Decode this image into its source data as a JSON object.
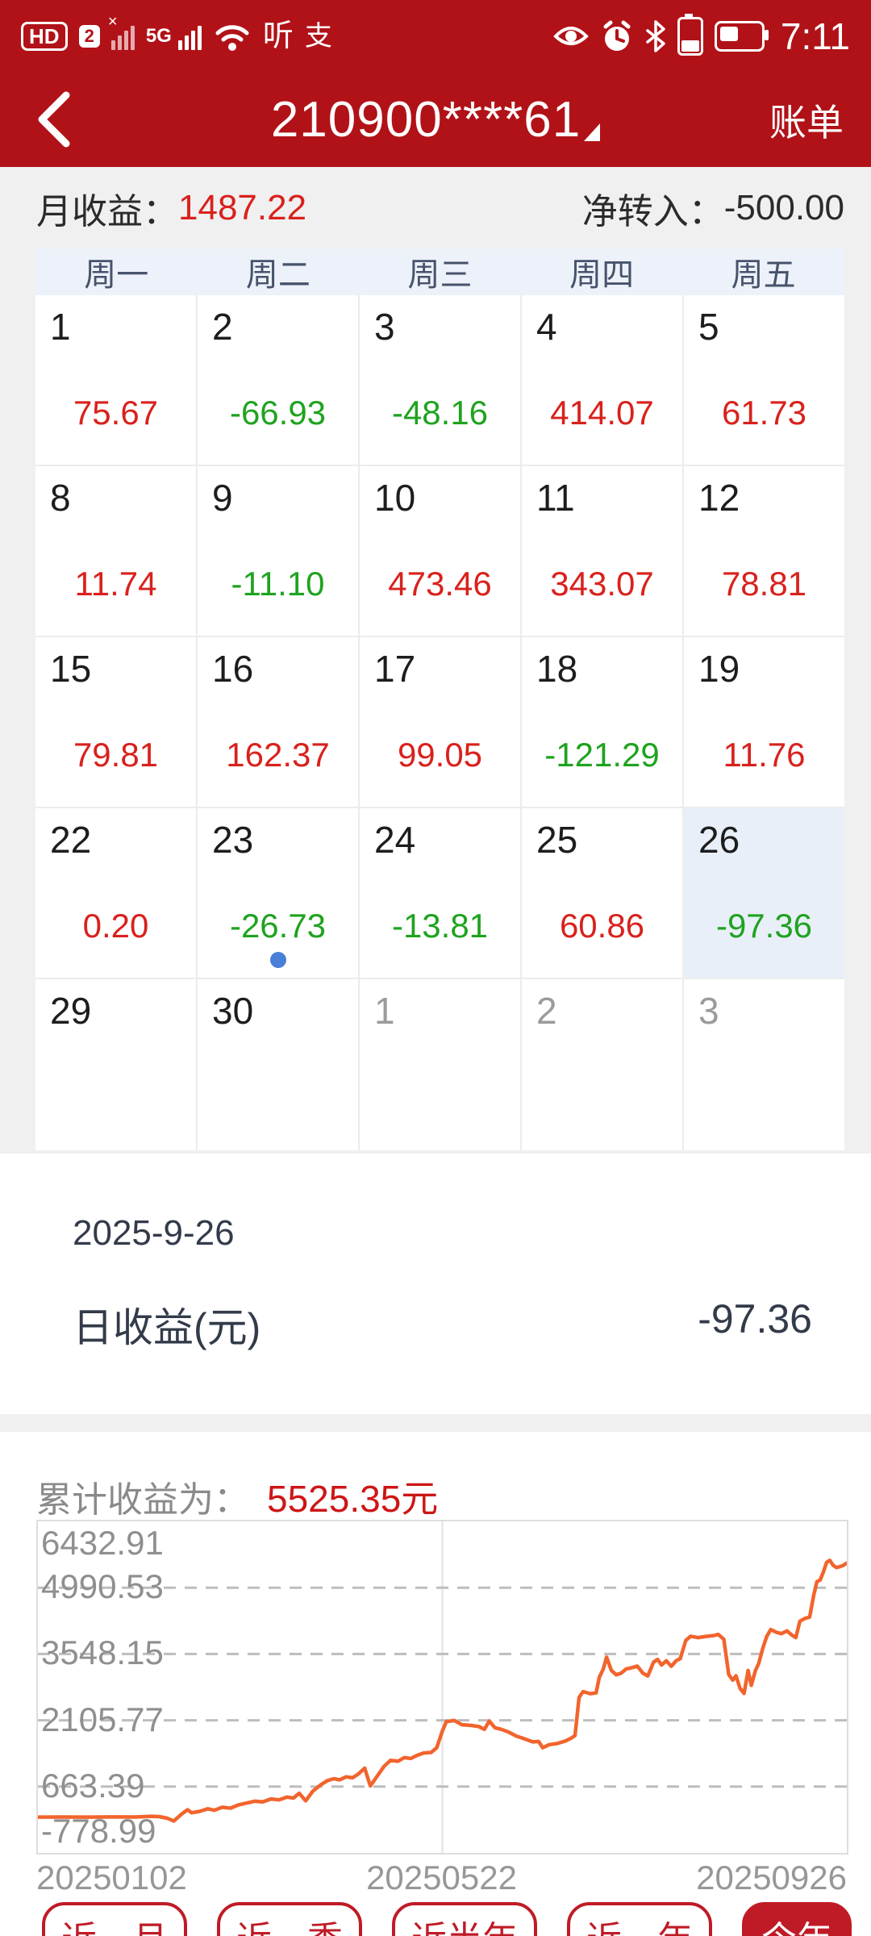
{
  "status_bar": {
    "time": "7:11",
    "hd_label": "HD",
    "sim_badge": "2",
    "network_label": "5G",
    "notif_glyph_1": "听",
    "notif_glyph_2": "支"
  },
  "header": {
    "title": "210900****61",
    "action": "账单"
  },
  "summary": {
    "month_label": "月收益：",
    "month_value": "1487.22",
    "net_label": "净转入：",
    "net_value": "-500.00"
  },
  "calendar": {
    "weekdays": [
      "周一",
      "周二",
      "周三",
      "周四",
      "周五"
    ],
    "weeks": [
      [
        {
          "day": "1",
          "value": "75.67",
          "dir": "up"
        },
        {
          "day": "2",
          "value": "-66.93",
          "dir": "down"
        },
        {
          "day": "3",
          "value": "-48.16",
          "dir": "down"
        },
        {
          "day": "4",
          "value": "414.07",
          "dir": "up"
        },
        {
          "day": "5",
          "value": "61.73",
          "dir": "up"
        }
      ],
      [
        {
          "day": "8",
          "value": "11.74",
          "dir": "up"
        },
        {
          "day": "9",
          "value": "-11.10",
          "dir": "down"
        },
        {
          "day": "10",
          "value": "473.46",
          "dir": "up"
        },
        {
          "day": "11",
          "value": "343.07",
          "dir": "up"
        },
        {
          "day": "12",
          "value": "78.81",
          "dir": "up"
        }
      ],
      [
        {
          "day": "15",
          "value": "79.81",
          "dir": "up"
        },
        {
          "day": "16",
          "value": "162.37",
          "dir": "up"
        },
        {
          "day": "17",
          "value": "99.05",
          "dir": "up"
        },
        {
          "day": "18",
          "value": "-121.29",
          "dir": "down"
        },
        {
          "day": "19",
          "value": "11.76",
          "dir": "up"
        }
      ],
      [
        {
          "day": "22",
          "value": "0.20",
          "dir": "up"
        },
        {
          "day": "23",
          "value": "-26.73",
          "dir": "down",
          "dot": true
        },
        {
          "day": "24",
          "value": "-13.81",
          "dir": "down"
        },
        {
          "day": "25",
          "value": "60.86",
          "dir": "up"
        },
        {
          "day": "26",
          "value": "-97.36",
          "dir": "down",
          "selected": true
        }
      ],
      [
        {
          "day": "29"
        },
        {
          "day": "30"
        },
        {
          "day": "1",
          "muted": true
        },
        {
          "day": "2",
          "muted": true
        },
        {
          "day": "3",
          "muted": true
        }
      ]
    ]
  },
  "detail": {
    "date": "2025-9-26",
    "row_label": "日收益(元)",
    "row_value": "-97.36"
  },
  "cumulative": {
    "label": "累计收益为：",
    "value": "5525.35元"
  },
  "chart_data": {
    "type": "line",
    "title": "累计收益为 5525.35元",
    "ylim": [
      -778.99,
      6432.91
    ],
    "yticks": [
      6432.91,
      4990.53,
      3548.15,
      2105.77,
      663.39,
      -778.99
    ],
    "gridlines": [
      4990.53,
      3548.15,
      2105.77,
      663.39
    ],
    "grid_style": "dashed",
    "vline_x_fraction": 0.5,
    "xticks": [
      "20250102",
      "20250522",
      "20250926"
    ],
    "line_color": "#f2642d",
    "series": [
      {
        "name": "累计收益",
        "points": [
          [
            0,
            0
          ],
          [
            0.03,
            2
          ],
          [
            0.06,
            0
          ],
          [
            0.09,
            3
          ],
          [
            0.12,
            1
          ],
          [
            0.14,
            18
          ],
          [
            0.15,
            10
          ],
          [
            0.16,
            -25
          ],
          [
            0.168,
            -85
          ],
          [
            0.178,
            70
          ],
          [
            0.185,
            160
          ],
          [
            0.19,
            95
          ],
          [
            0.2,
            125
          ],
          [
            0.21,
            180
          ],
          [
            0.218,
            150
          ],
          [
            0.228,
            215
          ],
          [
            0.238,
            195
          ],
          [
            0.248,
            265
          ],
          [
            0.258,
            305
          ],
          [
            0.268,
            345
          ],
          [
            0.278,
            330
          ],
          [
            0.288,
            395
          ],
          [
            0.298,
            375
          ],
          [
            0.308,
            435
          ],
          [
            0.316,
            415
          ],
          [
            0.323,
            520
          ],
          [
            0.331,
            355
          ],
          [
            0.34,
            565
          ],
          [
            0.35,
            705
          ],
          [
            0.358,
            795
          ],
          [
            0.366,
            835
          ],
          [
            0.373,
            810
          ],
          [
            0.381,
            875
          ],
          [
            0.389,
            855
          ],
          [
            0.396,
            935
          ],
          [
            0.404,
            1065
          ],
          [
            0.411,
            680
          ],
          [
            0.42,
            905
          ],
          [
            0.428,
            1105
          ],
          [
            0.436,
            1235
          ],
          [
            0.445,
            1215
          ],
          [
            0.453,
            1295
          ],
          [
            0.461,
            1275
          ],
          [
            0.469,
            1345
          ],
          [
            0.477,
            1395
          ],
          [
            0.486,
            1405
          ],
          [
            0.493,
            1510
          ],
          [
            0.5,
            1870
          ],
          [
            0.505,
            2080
          ],
          [
            0.515,
            2100
          ],
          [
            0.524,
            2010
          ],
          [
            0.535,
            1995
          ],
          [
            0.545,
            1970
          ],
          [
            0.552,
            1910
          ],
          [
            0.558,
            2090
          ],
          [
            0.565,
            1945
          ],
          [
            0.573,
            1910
          ],
          [
            0.582,
            1850
          ],
          [
            0.591,
            1765
          ],
          [
            0.601,
            1705
          ],
          [
            0.612,
            1635
          ],
          [
            0.619,
            1645
          ],
          [
            0.624,
            1510
          ],
          [
            0.632,
            1575
          ],
          [
            0.642,
            1600
          ],
          [
            0.652,
            1655
          ],
          [
            0.659,
            1715
          ],
          [
            0.664,
            1775
          ],
          [
            0.669,
            2600
          ],
          [
            0.674,
            2730
          ],
          [
            0.683,
            2685
          ],
          [
            0.69,
            2700
          ],
          [
            0.694,
            3040
          ],
          [
            0.699,
            3225
          ],
          [
            0.703,
            3480
          ],
          [
            0.709,
            3190
          ],
          [
            0.715,
            3095
          ],
          [
            0.721,
            3130
          ],
          [
            0.727,
            3220
          ],
          [
            0.734,
            3250
          ],
          [
            0.741,
            3285
          ],
          [
            0.748,
            3130
          ],
          [
            0.754,
            3070
          ],
          [
            0.761,
            3370
          ],
          [
            0.766,
            3430
          ],
          [
            0.771,
            3310
          ],
          [
            0.777,
            3400
          ],
          [
            0.783,
            3280
          ],
          [
            0.789,
            3400
          ],
          [
            0.794,
            3445
          ],
          [
            0.801,
            3845
          ],
          [
            0.807,
            3935
          ],
          [
            0.816,
            3905
          ],
          [
            0.826,
            3930
          ],
          [
            0.836,
            3950
          ],
          [
            0.841,
            3975
          ],
          [
            0.848,
            3870
          ],
          [
            0.854,
            3100
          ],
          [
            0.859,
            2980
          ],
          [
            0.863,
            3075
          ],
          [
            0.868,
            2800
          ],
          [
            0.873,
            2690
          ],
          [
            0.878,
            3190
          ],
          [
            0.882,
            2865
          ],
          [
            0.887,
            3190
          ],
          [
            0.891,
            3340
          ],
          [
            0.896,
            3665
          ],
          [
            0.901,
            3930
          ],
          [
            0.906,
            4080
          ],
          [
            0.913,
            4020
          ],
          [
            0.919,
            3990
          ],
          [
            0.926,
            4050
          ],
          [
            0.932,
            3960
          ],
          [
            0.937,
            3905
          ],
          [
            0.942,
            4260
          ],
          [
            0.948,
            4320
          ],
          [
            0.954,
            4350
          ],
          [
            0.959,
            4820
          ],
          [
            0.963,
            5120
          ],
          [
            0.967,
            5155
          ],
          [
            0.971,
            5330
          ],
          [
            0.975,
            5540
          ],
          [
            0.979,
            5585
          ],
          [
            0.983,
            5480
          ],
          [
            0.987,
            5430
          ],
          [
            0.991,
            5445
          ],
          [
            0.995,
            5470
          ],
          [
            1,
            5525.35
          ]
        ]
      }
    ]
  },
  "footer": {
    "ranges": [
      {
        "label": "近一月",
        "active": false
      },
      {
        "label": "近一季",
        "active": false
      },
      {
        "label": "近半年",
        "active": false
      },
      {
        "label": "近一年",
        "active": false
      },
      {
        "label": "今年",
        "active": true
      }
    ]
  },
  "colors": {
    "header_red": "#b11218",
    "accent_crimson": "#bf1b26",
    "gain_red": "#d9211c",
    "loss_green": "#1fa31f",
    "selected_cell": "#e8eff8",
    "dot_blue": "#4a7fd8",
    "line_orange": "#f2642d"
  }
}
